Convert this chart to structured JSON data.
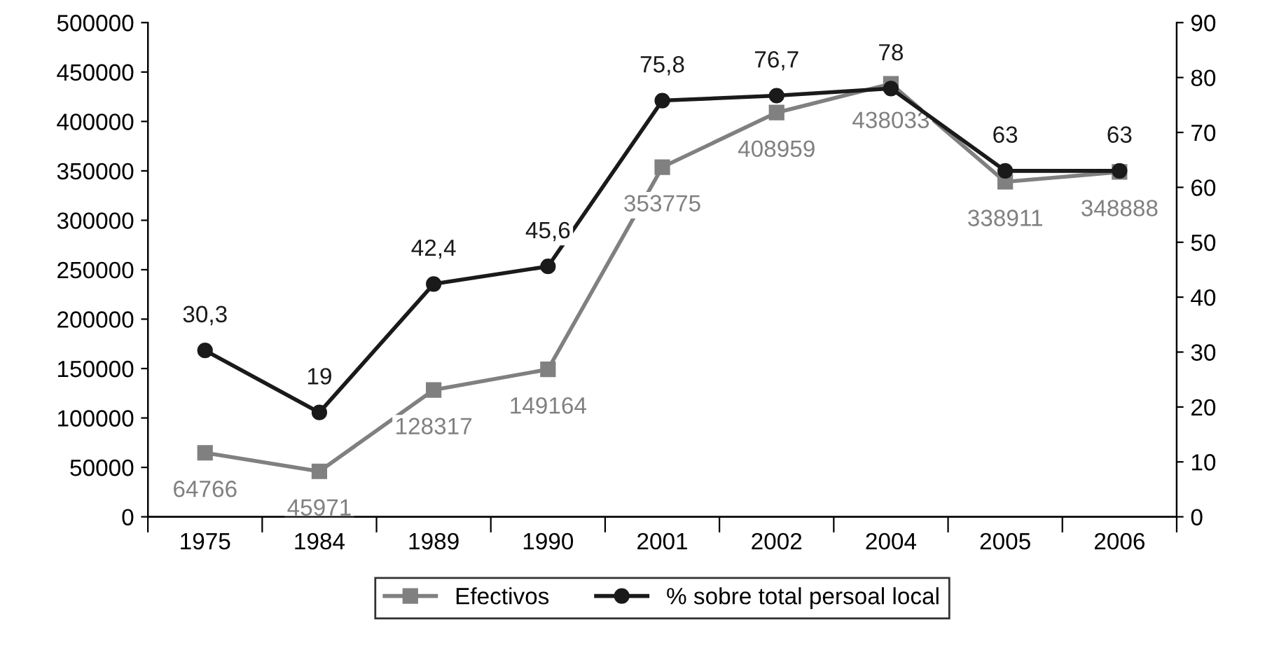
{
  "chart_data": {
    "type": "line",
    "categories": [
      "1975",
      "1984",
      "1989",
      "1990",
      "2001",
      "2002",
      "2004",
      "2005",
      "2006"
    ],
    "series": [
      {
        "name": "Efectivos",
        "color": "#808080",
        "marker": "square",
        "values": [
          64766,
          45971,
          128317,
          149164,
          353775,
          408959,
          438033,
          338911,
          348888
        ],
        "value_labels": [
          "64766",
          "45971",
          "128317",
          "149164",
          "353775",
          "408959",
          "438033",
          "338911",
          "348888"
        ]
      },
      {
        "name": "% sobre total persoal local",
        "color": "#1a1a1a",
        "marker": "circle",
        "axis": "y2",
        "values": [
          30.3,
          19,
          42.4,
          45.6,
          75.8,
          76.7,
          78,
          63,
          63
        ],
        "value_labels": [
          "30,3",
          "19",
          "42,4",
          "45,6",
          "75,8",
          "76,7",
          "78",
          "63",
          "63"
        ]
      }
    ],
    "ylim": [
      0,
      500000
    ],
    "yticks": [
      0,
      50000,
      100000,
      150000,
      200000,
      250000,
      300000,
      350000,
      400000,
      450000,
      500000
    ],
    "y2lim": [
      0,
      90
    ],
    "y2ticks": [
      0,
      10,
      20,
      30,
      40,
      50,
      60,
      70,
      80,
      90
    ],
    "grid": false,
    "legend": "bottom",
    "line_style": "solid"
  }
}
